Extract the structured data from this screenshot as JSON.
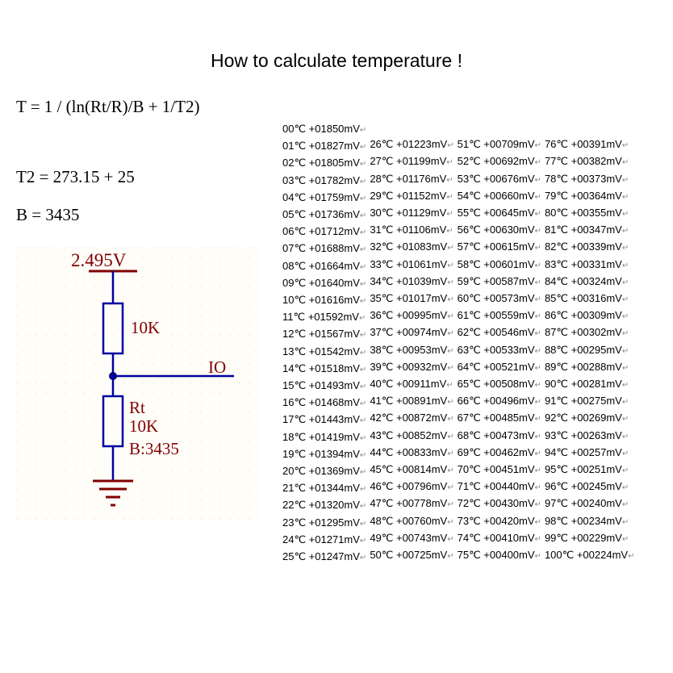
{
  "title": "How to calculate temperature !",
  "formulas": {
    "main": "T = 1 / (ln(Rt/R)/B + 1/T2)",
    "t2": "T2 = 273.15 + 25",
    "b": "B = 3435",
    "r": "R = 10000"
  },
  "schematic": {
    "vref": "2.495V",
    "r1": "10K",
    "io": "IO",
    "rt": "Rt",
    "rt_val": "10K",
    "rt_b": "B:3435",
    "colors": {
      "label": "#800000",
      "wire": "#0000a0",
      "node": "#000080"
    }
  },
  "table": {
    "unit_suffix": "mV",
    "deg": "℃",
    "columns": [
      {
        "start": 0,
        "values": [
          "+01850",
          "+01827",
          "+01805",
          "+01782",
          "+01759",
          "+01736",
          "+01712",
          "+01688",
          "+01664",
          "+01640",
          "+01616",
          "+01592",
          "+01567",
          "+01542",
          "+01518",
          "+01493",
          "+01468",
          "+01443",
          "+01419",
          "+01394",
          "+01369",
          "+01344",
          "+01320",
          "+01295",
          "+01271",
          "+01247"
        ]
      },
      {
        "start": 26,
        "values": [
          "+01223",
          "+01199",
          "+01176",
          "+01152",
          "+01129",
          "+01106",
          "+01083",
          "+01061",
          "+01039",
          "+01017",
          "+00995",
          "+00974",
          "+00953",
          "+00932",
          "+00911",
          "+00891",
          "+00872",
          "+00852",
          "+00833",
          "+00814",
          "+00796",
          "+00778",
          "+00760",
          "+00743",
          "+00725"
        ]
      },
      {
        "start": 51,
        "values": [
          "+00709",
          "+00692",
          "+00676",
          "+00660",
          "+00645",
          "+00630",
          "+00615",
          "+00601",
          "+00587",
          "+00573",
          "+00559",
          "+00546",
          "+00533",
          "+00521",
          "+00508",
          "+00496",
          "+00485",
          "+00473",
          "+00462",
          "+00451",
          "+00440",
          "+00430",
          "+00420",
          "+00410",
          "+00400"
        ]
      },
      {
        "start": 76,
        "values": [
          "+00391",
          "+00382",
          "+00373",
          "+00364",
          "+00355",
          "+00347",
          "+00339",
          "+00331",
          "+00324",
          "+00316",
          "+00309",
          "+00302",
          "+00295",
          "+00288",
          "+00281",
          "+00275",
          "+00269",
          "+00263",
          "+00257",
          "+00251",
          "+00245",
          "+00240",
          "+00234",
          "+00229",
          "+00224"
        ]
      }
    ]
  }
}
